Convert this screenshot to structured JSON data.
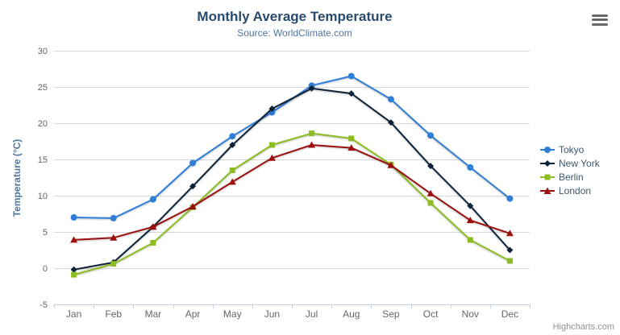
{
  "header": {
    "title": "Monthly Average Temperature",
    "subtitle": "Source: WorldClimate.com"
  },
  "credits": "Highcharts.com",
  "icons": {
    "context_menu": "hamburger-icon"
  },
  "colors": {
    "title": "#274b6d",
    "subtitle": "#4d759e",
    "axis_title": "#4d759e",
    "grid_line": "#d8d8d8",
    "axis_line": "#c0d0e0",
    "tick_label": "#666666",
    "legend_text": "#3e576f",
    "credits_text": "#909090"
  },
  "chart_data": {
    "type": "line",
    "title": "Monthly Average Temperature",
    "subtitle": "Source: WorldClimate.com",
    "xlabel": "",
    "ylabel": "Temperature (°C)",
    "ylim": [
      -5,
      30
    ],
    "ytick_interval": 5,
    "yticks": [
      30,
      25,
      20,
      15,
      10,
      5,
      0,
      -5
    ],
    "grid": true,
    "legend_position": "right",
    "categories": [
      "Jan",
      "Feb",
      "Mar",
      "Apr",
      "May",
      "Jun",
      "Jul",
      "Aug",
      "Sep",
      "Oct",
      "Nov",
      "Dec"
    ],
    "series": [
      {
        "name": "Tokyo",
        "color": "#2f7ed8",
        "marker": "circle",
        "values": [
          7.0,
          6.9,
          9.5,
          14.5,
          18.2,
          21.5,
          25.2,
          26.5,
          23.3,
          18.3,
          13.9,
          9.6
        ]
      },
      {
        "name": "New York",
        "color": "#0d233a",
        "marker": "diamond",
        "values": [
          -0.2,
          0.8,
          5.7,
          11.3,
          17.0,
          22.0,
          24.8,
          24.1,
          20.1,
          14.1,
          8.6,
          2.5
        ]
      },
      {
        "name": "Berlin",
        "color": "#8bbc21",
        "marker": "square",
        "values": [
          -0.9,
          0.6,
          3.5,
          8.4,
          13.5,
          17.0,
          18.6,
          17.9,
          14.3,
          9.0,
          3.9,
          1.0
        ]
      },
      {
        "name": "London",
        "color": "#9c0f0f",
        "marker": "triangle",
        "values": [
          3.9,
          4.2,
          5.7,
          8.5,
          11.9,
          15.2,
          17.0,
          16.6,
          14.2,
          10.3,
          6.6,
          4.8
        ]
      }
    ]
  }
}
